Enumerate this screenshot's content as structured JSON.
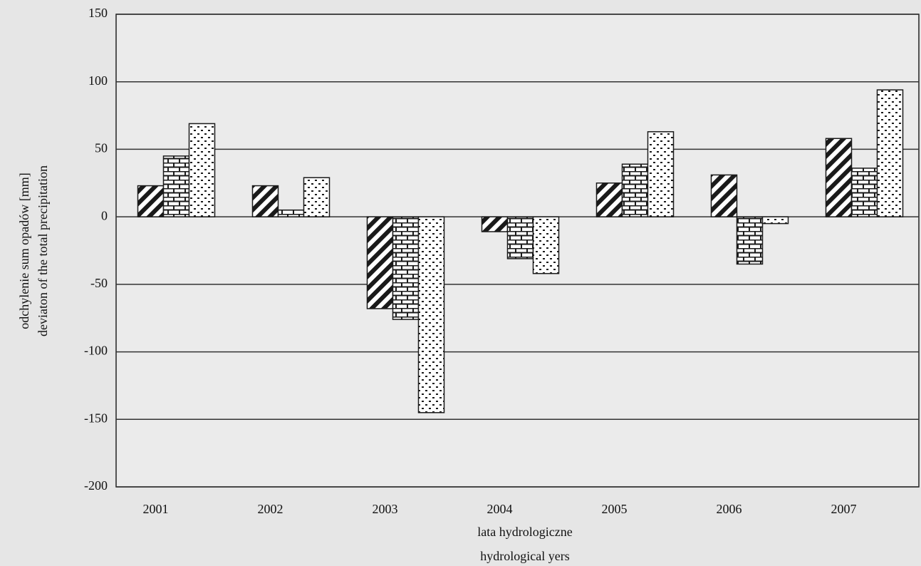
{
  "chart_data": {
    "type": "bar",
    "categories": [
      "2001",
      "2002",
      "2003",
      "2004",
      "2005",
      "2006",
      "2007"
    ],
    "series": [
      {
        "pattern": "hatch",
        "color": "#1a1a1a",
        "values": [
          23,
          23,
          -68,
          -11,
          25,
          31,
          58
        ]
      },
      {
        "pattern": "brick",
        "color": "#1a1a1a",
        "values": [
          45,
          5,
          -76,
          -31,
          39,
          -35,
          36
        ]
      },
      {
        "pattern": "dots",
        "color": "#1a1a1a",
        "values": [
          69,
          29,
          -145,
          -42,
          63,
          -5,
          94
        ]
      }
    ],
    "ylim": [
      -200,
      150
    ],
    "yticks": [
      -200,
      -150,
      -100,
      -50,
      0,
      50,
      100,
      150
    ],
    "grid": true,
    "y_label": [
      "odchylenie sum opadów [mm]",
      "deviaton of the total precipitation"
    ],
    "x_label": [
      "lata hydrologiczne",
      "hydrological yers"
    ]
  }
}
